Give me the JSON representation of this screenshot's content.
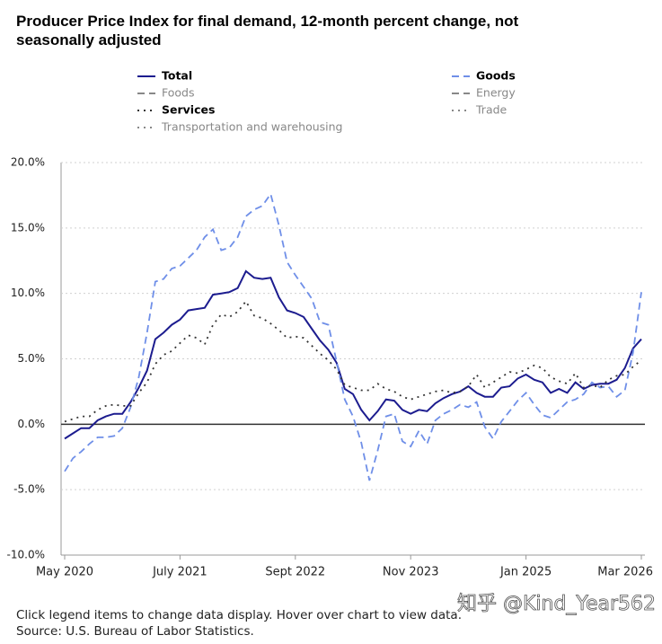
{
  "chart_data": {
    "type": "line",
    "title": "Producer Price Index for final demand, 12-month percent change, not seasonally adjusted",
    "categories": [
      "May 2020",
      null,
      null,
      null,
      null,
      null,
      null,
      null,
      null,
      null,
      null,
      null,
      null,
      null,
      "July 2021",
      null,
      null,
      null,
      null,
      null,
      null,
      null,
      null,
      null,
      null,
      null,
      null,
      null,
      "Sept 2022",
      null,
      null,
      null,
      null,
      null,
      null,
      null,
      null,
      null,
      null,
      null,
      null,
      null,
      "Nov 2023",
      null,
      null,
      null,
      null,
      null,
      null,
      null,
      null,
      null,
      null,
      null,
      null,
      null,
      "Jan 2025",
      null,
      null,
      null,
      null,
      null,
      null,
      null,
      null,
      null,
      null,
      null,
      null,
      null,
      "Mar 2026"
    ],
    "series": [
      {
        "name": "Total",
        "color": "#1c1c8f",
        "dash": "solid",
        "visible": true,
        "values": [
          -1.1,
          -0.7,
          -0.3,
          -0.3,
          0.3,
          0.6,
          0.8,
          0.8,
          1.7,
          2.8,
          4.1,
          6.5,
          7.0,
          7.6,
          8.0,
          8.7,
          8.8,
          8.9,
          9.9,
          10.0,
          10.1,
          10.4,
          11.7,
          11.2,
          11.1,
          11.2,
          9.7,
          8.7,
          8.5,
          8.2,
          7.3,
          6.4,
          5.7,
          4.7,
          2.7,
          2.3,
          1.1,
          0.3,
          1.0,
          1.9,
          1.8,
          1.1,
          0.8,
          1.1,
          1.0,
          1.6,
          2.0,
          2.3,
          2.5,
          2.9,
          2.4,
          2.1,
          2.1,
          2.8,
          2.9,
          3.5,
          3.8,
          3.4,
          3.2,
          2.4,
          2.7,
          2.4,
          3.2,
          2.7,
          3.0,
          3.1,
          3.1,
          3.4,
          4.3,
          5.8,
          6.5
        ]
      },
      {
        "name": "Goods",
        "color": "#6f8fe8",
        "dash": "dashed",
        "visible": true,
        "values": [
          -3.6,
          -2.6,
          -2.1,
          -1.5,
          -1.0,
          -1.0,
          -0.9,
          -0.3,
          1.3,
          3.6,
          7.0,
          10.9,
          11.1,
          11.9,
          12.1,
          12.7,
          13.3,
          14.3,
          14.9,
          13.3,
          13.5,
          14.3,
          15.9,
          16.4,
          16.7,
          17.6,
          15.2,
          12.4,
          11.4,
          10.5,
          9.6,
          7.8,
          7.6,
          4.8,
          1.9,
          0.6,
          -1.4,
          -4.3,
          -2.0,
          0.6,
          0.8,
          -1.3,
          -1.7,
          -0.5,
          -1.5,
          0.3,
          0.8,
          1.1,
          1.5,
          1.3,
          1.7,
          -0.2,
          -1.1,
          0.2,
          1.0,
          1.8,
          2.4,
          1.5,
          0.7,
          0.5,
          1.1,
          1.7,
          1.9,
          2.3,
          3.2,
          2.8,
          2.9,
          2.1,
          2.6,
          5.5,
          10.1
        ]
      },
      {
        "name": "Foods",
        "color": "#888888",
        "dash": "dashed",
        "visible": false
      },
      {
        "name": "Energy",
        "color": "#888888",
        "dash": "dashed",
        "visible": false
      },
      {
        "name": "Services",
        "color": "#333333",
        "dash": "dotted",
        "visible": true,
        "values": [
          0.2,
          0.4,
          0.6,
          0.6,
          1.1,
          1.4,
          1.5,
          1.4,
          1.4,
          2.4,
          3.2,
          4.6,
          5.3,
          5.6,
          6.2,
          6.8,
          6.6,
          6.1,
          7.6,
          8.4,
          8.2,
          8.6,
          9.4,
          8.3,
          8.1,
          7.7,
          7.2,
          6.6,
          6.7,
          6.6,
          6.0,
          5.4,
          4.9,
          4.2,
          3.0,
          2.8,
          2.6,
          2.6,
          3.1,
          2.7,
          2.5,
          2.1,
          1.9,
          2.1,
          2.3,
          2.5,
          2.6,
          2.4,
          2.5,
          2.9,
          3.8,
          2.8,
          3.2,
          3.6,
          4.0,
          3.9,
          4.2,
          4.5,
          4.3,
          3.6,
          3.3,
          3.1,
          3.9,
          2.8,
          3.0,
          2.8,
          3.4,
          3.7,
          3.8,
          4.4,
          4.9
        ]
      },
      {
        "name": "Trade",
        "color": "#888888",
        "dash": "dotted",
        "visible": false
      },
      {
        "name": "Transportation and warehousing",
        "color": "#888888",
        "dash": "dotted",
        "visible": false
      }
    ],
    "ylim": [
      -10,
      20
    ],
    "yticks": [
      {
        "value": 20,
        "label": "20.0%"
      },
      {
        "value": 15,
        "label": "15.0%"
      },
      {
        "value": 10,
        "label": "10.0%"
      },
      {
        "value": 5,
        "label": "5.0%"
      },
      {
        "value": 0,
        "label": "0.0%"
      },
      {
        "value": -5,
        "label": "-5.0%"
      },
      {
        "value": -10,
        "label": "-10.0%"
      }
    ],
    "grid": true,
    "zero_line": 0,
    "notes": [
      "Click legend items to change data display. Hover over chart to view data.",
      "Source: U.S. Bureau of Labor Statistics."
    ],
    "watermark": "知乎 @Kind_Year562"
  }
}
